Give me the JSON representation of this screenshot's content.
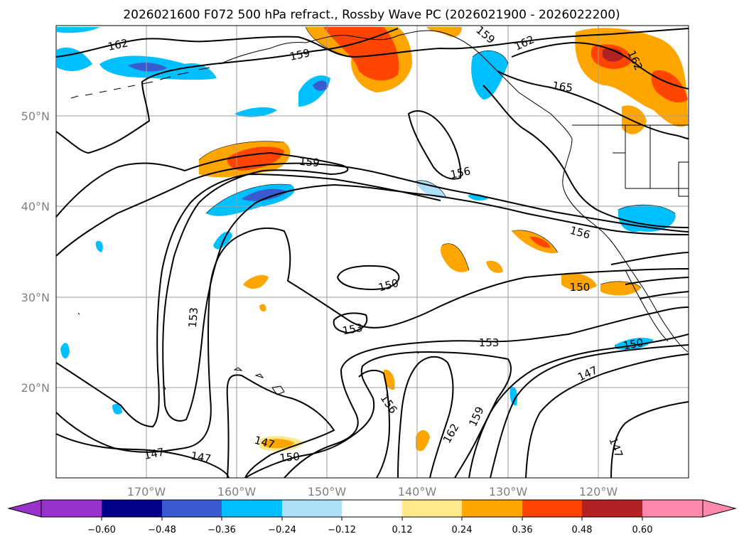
{
  "title": "2026021600 F072 500 hPa refract., Rossby Wave PC (2026021900 - 2026022200)",
  "map": {
    "lat_labels": [
      "50°N",
      "40°N",
      "30°N",
      "20°N"
    ],
    "lon_labels": [
      "170°W",
      "160°W",
      "150°W",
      "140°W",
      "130°W",
      "120°W"
    ]
  },
  "contour_labels": [
    "162",
    "159",
    "159",
    "162",
    "165",
    "162",
    "159",
    "156",
    "156",
    "150",
    "150",
    "153",
    "153",
    "153",
    "150",
    "147",
    "156",
    "159",
    "162",
    "147",
    "147",
    "147",
    "150",
    "147"
  ],
  "colorbar": {
    "ticks": [
      "−0.60",
      "−0.48",
      "−0.36",
      "−0.24",
      "−0.12",
      "0.12",
      "0.24",
      "0.36",
      "0.48",
      "0.60"
    ],
    "colors": [
      "#9932CC",
      "#00008B",
      "#3A5BCF",
      "#00BFFF",
      "#ADDFF7",
      "#FFFFFF",
      "#FFE98A",
      "#FFA500",
      "#FF4500",
      "#B22222",
      "#FF89AD"
    ]
  },
  "palette": {
    "violet": "#9932CC",
    "navy": "#00008B",
    "blue": "#3A5BCF",
    "sky": "#00BFFF",
    "light_blue": "#ADDFF7",
    "light_yellow": "#FFE98A",
    "orange": "#FFA500",
    "red_orange": "#FF4500",
    "dark_red": "#B22222",
    "pink": "#FF89AD"
  }
}
